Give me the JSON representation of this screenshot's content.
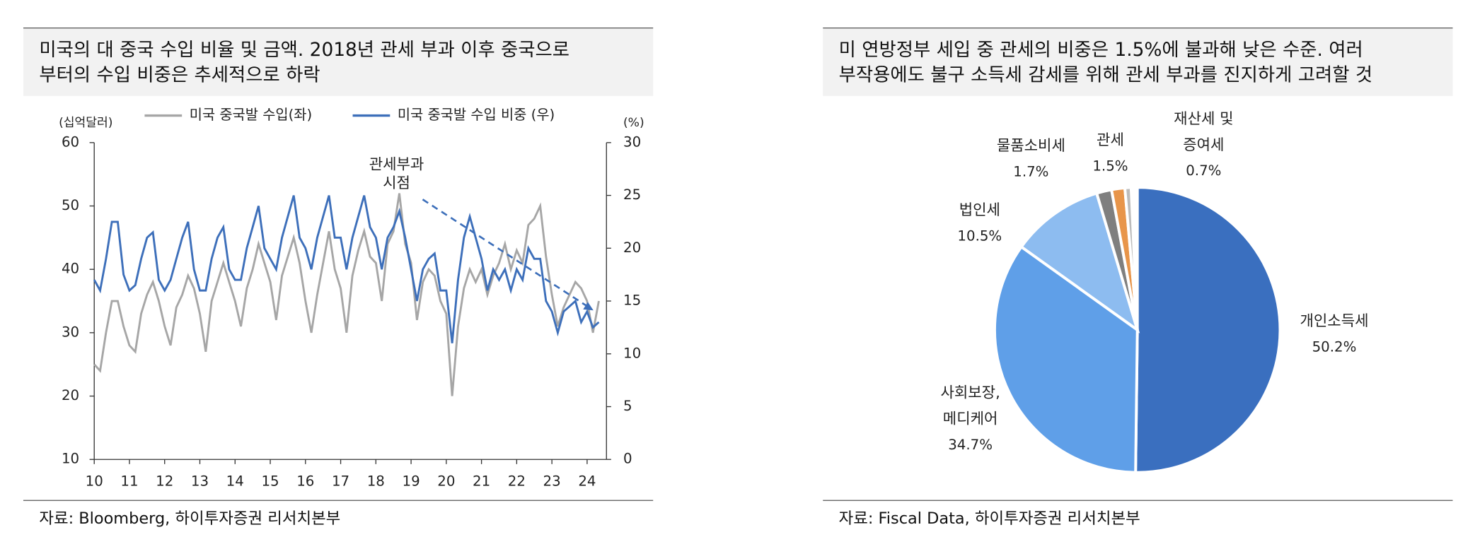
{
  "chart_data": [
    {
      "type": "line",
      "title": [
        "미국의 대 중국 수입 비율 및 금액. 2018년 관세 부과 이후 중국으로",
        "부터의 수입 비중은 추세적으로 하락"
      ],
      "y_label": "(십억달러)",
      "y2_label": "(%)",
      "annotation": [
        "관세부과",
        "시점"
      ],
      "source": "자료: Bloomberg, 하이투자증권 리서치본부",
      "xlim": [
        10,
        24.55
      ],
      "xticks": [
        10,
        11,
        12,
        13,
        14,
        15,
        16,
        17,
        18,
        19,
        20,
        21,
        22,
        23,
        24
      ],
      "ylim": [
        10,
        60
      ],
      "yticks": [
        10,
        20,
        30,
        40,
        50,
        60
      ],
      "y2lim": [
        0,
        30
      ],
      "y2ticks": [
        0,
        5,
        10,
        15,
        20,
        25,
        30
      ],
      "x": [
        10,
        10.167,
        10.333,
        10.5,
        10.667,
        10.833,
        11,
        11.167,
        11.333,
        11.5,
        11.667,
        11.833,
        12,
        12.167,
        12.333,
        12.5,
        12.667,
        12.833,
        13,
        13.167,
        13.333,
        13.5,
        13.667,
        13.833,
        14,
        14.167,
        14.333,
        14.5,
        14.667,
        14.833,
        15,
        15.167,
        15.333,
        15.5,
        15.667,
        15.833,
        16,
        16.167,
        16.333,
        16.5,
        16.667,
        16.833,
        17,
        17.167,
        17.333,
        17.5,
        17.667,
        17.833,
        18,
        18.167,
        18.333,
        18.5,
        18.667,
        18.833,
        19,
        19.167,
        19.333,
        19.5,
        19.667,
        19.833,
        20,
        20.167,
        20.333,
        20.5,
        20.667,
        20.833,
        21,
        21.167,
        21.333,
        21.5,
        21.667,
        21.833,
        22,
        22.167,
        22.333,
        22.5,
        22.667,
        22.833,
        23,
        23.167,
        23.333,
        23.5,
        23.667,
        23.833,
        24,
        24.167,
        24.333
      ],
      "series": [
        {
          "name": "미국 중국발 수입(좌)",
          "color": "#a6a6a6",
          "values": [
            25,
            24,
            30,
            35,
            35,
            31,
            28,
            27,
            33,
            36,
            38,
            35,
            31,
            28,
            34,
            36,
            39,
            37,
            33,
            27,
            35,
            38,
            41,
            38,
            35,
            31,
            37,
            40,
            44,
            41,
            38,
            32,
            39,
            42,
            45,
            41,
            35,
            30,
            36,
            41,
            46,
            40,
            37,
            30,
            39,
            43,
            46,
            42,
            41,
            35,
            44,
            46,
            52,
            44,
            41,
            32,
            38,
            40,
            39,
            35,
            33,
            20,
            31,
            37,
            40,
            38,
            40,
            36,
            39,
            41,
            44,
            40,
            43,
            41,
            47,
            48,
            50,
            42,
            36,
            31,
            34,
            36,
            38,
            37,
            35,
            30,
            35
          ]
        },
        {
          "name": "미국 중국발 수입 비중 (우)",
          "color": "#3d6fba",
          "axis": "y2",
          "values": [
            17,
            16,
            19,
            22.5,
            22.5,
            17.5,
            16,
            16.5,
            19,
            21,
            21.5,
            17,
            16,
            17,
            19,
            21,
            22.5,
            18,
            16,
            16,
            19,
            21,
            22,
            18,
            17,
            17,
            20,
            22,
            24,
            20,
            19,
            18,
            21,
            23,
            25,
            21,
            20,
            18,
            21,
            23,
            25,
            21,
            21,
            18,
            21,
            23,
            25,
            22,
            21,
            18,
            21,
            22,
            23.5,
            21,
            18,
            15,
            18,
            19,
            19.5,
            16,
            16,
            11,
            17,
            21,
            23,
            21,
            19,
            16,
            18,
            17,
            18,
            16,
            18,
            17,
            20,
            19,
            19,
            15,
            14,
            12,
            14,
            14.5,
            15,
            13,
            14,
            12.5,
            13
          ]
        }
      ]
    },
    {
      "type": "pie",
      "title": [
        "미 연방정부 세입 중 관세의 비중은 1.5%에 불과해 낮은 수준. 여러",
        "부작용에도 불구 소득세 감세를 위해 관세 부과를 진지하게 고려할 것"
      ],
      "source": "자료: Fiscal Data, 하이투자증권 리서치본부",
      "categories": [
        [
          "개인소득세"
        ],
        [
          "사회보장,",
          "메디케어"
        ],
        [
          "법인세"
        ],
        [
          "물품소비세"
        ],
        [
          "관세"
        ],
        [
          "재산세 및",
          "증여세"
        ]
      ],
      "values": [
        50.2,
        34.7,
        10.5,
        1.7,
        1.5,
        0.7
      ],
      "value_labels": [
        "50.2%",
        "34.7%",
        "10.5%",
        "1.7%",
        "1.5%",
        "0.7%"
      ],
      "colors": [
        "#3a6fbf",
        "#5f9fe8",
        "#8dbcf0",
        "#7f7f7f",
        "#e8954a",
        "#bcbcbc"
      ]
    }
  ]
}
